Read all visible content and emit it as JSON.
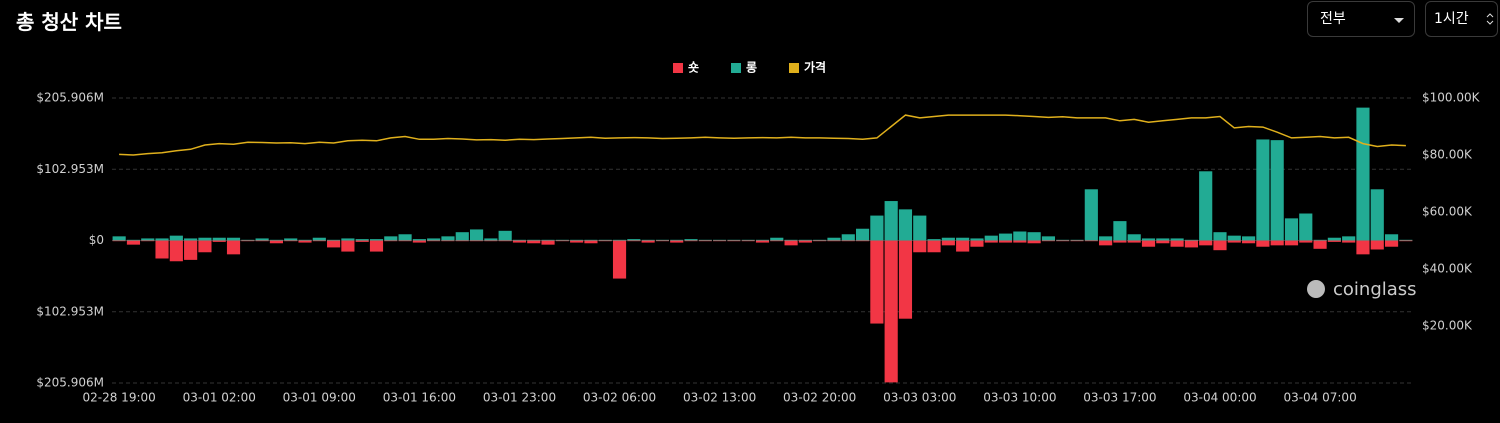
{
  "header": {
    "title": "총 청산 차트",
    "filter": "전부",
    "interval": "1시간"
  },
  "chart_data": {
    "type": "bar",
    "watermark": "coinglass",
    "categories": [
      "02-28 19:00",
      null,
      null,
      null,
      null,
      null,
      null,
      "03-01 02:00",
      null,
      null,
      null,
      null,
      null,
      null,
      "03-01 09:00",
      null,
      null,
      null,
      null,
      null,
      null,
      "03-01 16:00",
      null,
      null,
      null,
      null,
      null,
      null,
      "03-01 23:00",
      null,
      null,
      null,
      null,
      null,
      null,
      "03-02 06:00",
      null,
      null,
      null,
      null,
      null,
      null,
      "03-02 13:00",
      null,
      null,
      null,
      null,
      null,
      null,
      "03-02 20:00",
      null,
      null,
      null,
      null,
      null,
      null,
      "03-03 03:00",
      null,
      null,
      null,
      null,
      null,
      null,
      "03-03 10:00",
      null,
      null,
      null,
      null,
      null,
      null,
      "03-03 17:00",
      null,
      null,
      null,
      null,
      null,
      null,
      "03-04 00:00",
      null,
      null,
      null,
      null,
      null,
      null,
      "03-04 07:00",
      null,
      null,
      null,
      null,
      null,
      null
    ],
    "series": [
      {
        "name": "숏",
        "color": "#f23645",
        "values": [
          -1,
          -6,
          -1,
          -26,
          -30,
          -28,
          -17,
          -2,
          -20,
          -1,
          -1,
          -4,
          -1,
          -3,
          -1,
          -10,
          -16,
          -2,
          -16,
          -1,
          -1,
          -3,
          -1,
          -1,
          -1,
          -1,
          -1,
          -1,
          -3,
          -4,
          -6,
          -1,
          -3,
          -4,
          -1,
          -55,
          -1,
          -3,
          -1,
          -3,
          -1,
          -1,
          -1,
          -1,
          -1,
          -3,
          -1,
          -7,
          -3,
          -1,
          -1,
          -1,
          -1,
          -120,
          -205,
          -113,
          -17,
          -17,
          -7,
          -16,
          -9,
          -3,
          -3,
          -3,
          -4,
          -1,
          -1,
          -1,
          -1,
          -7,
          -3,
          -3,
          -9,
          -4,
          -9,
          -10,
          -7,
          -14,
          -3,
          -4,
          -9,
          -7,
          -7,
          -3,
          -12,
          -2,
          -3,
          -20,
          -13,
          -9,
          -1
        ]
      },
      {
        "name": "롱",
        "color": "#22ab94",
        "values": [
          6,
          1,
          3,
          3,
          7,
          3,
          4,
          4,
          4,
          1,
          3,
          1,
          3,
          1,
          4,
          1,
          3,
          2,
          2,
          6,
          9,
          2,
          3,
          6,
          12,
          16,
          3,
          14,
          1,
          1,
          1,
          1,
          1,
          1,
          1,
          1,
          2,
          1,
          1,
          1,
          2,
          1,
          1,
          1,
          1,
          1,
          4,
          1,
          1,
          1,
          4,
          9,
          17,
          36,
          57,
          45,
          36,
          2,
          4,
          4,
          3,
          7,
          10,
          13,
          12,
          6,
          1,
          1,
          74,
          6,
          28,
          9,
          3,
          3,
          3,
          1,
          100,
          12,
          7,
          6,
          146,
          145,
          32,
          39,
          1,
          4,
          6,
          192,
          74,
          9,
          1
        ]
      },
      {
        "name": "가격",
        "color": "#e0b01c",
        "axis": "y2",
        "type": "line",
        "values": [
          80.2,
          80,
          80.5,
          80.8,
          81.5,
          82,
          83.5,
          84,
          83.8,
          84.5,
          84.4,
          84.2,
          84.3,
          84,
          84.5,
          84.2,
          85,
          85.2,
          85,
          86,
          86.5,
          85.5,
          85.5,
          85.8,
          85.6,
          85.3,
          85.4,
          85.2,
          85.5,
          85.4,
          85.6,
          85.8,
          86,
          86.2,
          85.9,
          86,
          86.1,
          86,
          85.8,
          85.9,
          86,
          86.2,
          86,
          85.9,
          86,
          86.1,
          86,
          86.2,
          86,
          86,
          85.9,
          85.8,
          85.5,
          86,
          90,
          94,
          93,
          93.5,
          94,
          94,
          94,
          94,
          94,
          93.8,
          93.5,
          93.2,
          93.4,
          93,
          93,
          93,
          92,
          92.5,
          91.5,
          92,
          92.5,
          93,
          93,
          93.5,
          89.5,
          90,
          89.8,
          88,
          86,
          86.2,
          86.5,
          86,
          86.2,
          84,
          83,
          83.5,
          83.3
        ]
      }
    ],
    "ylim": [
      -205.906,
      205.906
    ],
    "yticks": [
      {
        "value": 205.906,
        "label": "$205.906M"
      },
      {
        "value": 102.953,
        "label": "$102.953M"
      },
      {
        "value": 0,
        "label": "$0"
      },
      {
        "value": -102.953,
        "label": "$102.953M"
      },
      {
        "value": -205.906,
        "label": "$205.906M"
      }
    ],
    "y2lim": [
      0,
      100
    ],
    "y2ticks": [
      {
        "value": 100,
        "label": "$100.00K"
      },
      {
        "value": 80,
        "label": "$80.00K"
      },
      {
        "value": 60,
        "label": "$60.00K"
      },
      {
        "value": 40,
        "label": "$40.00K"
      },
      {
        "value": 20,
        "label": "$20.00K"
      }
    ],
    "grid": true,
    "legend": "top"
  }
}
